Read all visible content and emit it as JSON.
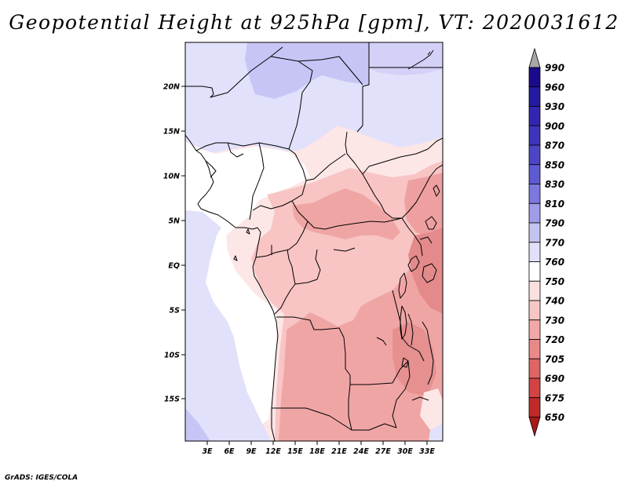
{
  "title": "Geopotential Height at 925hPa [gpm], VT: 2020031612",
  "credit": "GrADS: IGES/COLA",
  "map": {
    "lat_labels": [
      "20N",
      "15N",
      "10N",
      "5N",
      "EQ",
      "5S",
      "10S",
      "15S"
    ],
    "lon_labels": [
      "3E",
      "6E",
      "9E",
      "12E",
      "15E",
      "18E",
      "21E",
      "24E",
      "27E",
      "30E",
      "33E"
    ]
  },
  "colorbar": {
    "levels": [
      "990",
      "960",
      "930",
      "900",
      "870",
      "850",
      "830",
      "810",
      "790",
      "770",
      "760",
      "750",
      "740",
      "730",
      "720",
      "705",
      "690",
      "675",
      "650"
    ],
    "colors": [
      "#1a0a8c",
      "#241aa0",
      "#3226b0",
      "#3e34bc",
      "#4c46c6",
      "#5e5ad2",
      "#7c78de",
      "#a09ce8",
      "#c4c4f2",
      "#e0e0fa",
      "#ffffff",
      "#fbe0e0",
      "#f8c6c6",
      "#f2a8a8",
      "#ea8888",
      "#e06464",
      "#d24444",
      "#c02a2a",
      "#a81a1a"
    ],
    "top_arrow_color": "#a8a8a8",
    "bottom_arrow_color": "#a81a1a"
  }
}
